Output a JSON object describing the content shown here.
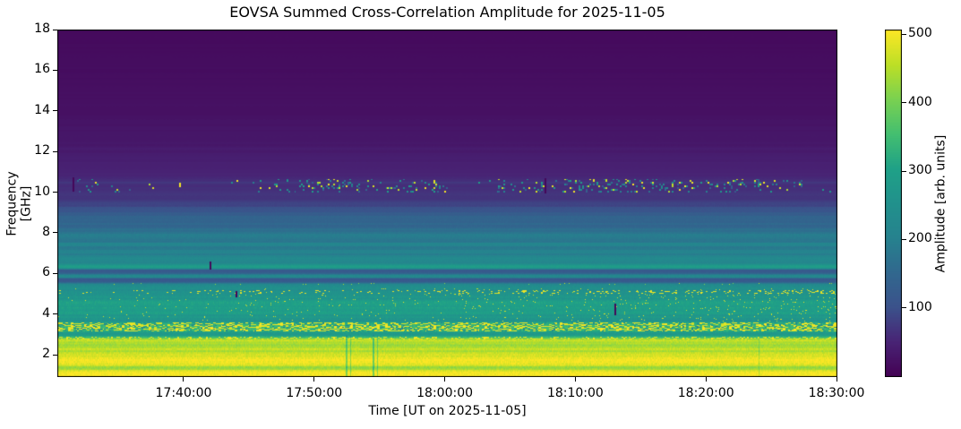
{
  "chart_data": {
    "type": "heatmap",
    "title": "EOVSA Summed Cross-Correlation Amplitude for 2025-11-05",
    "xlabel": "Time [UT on 2025-11-05]",
    "ylabel": "Frequency [GHz]",
    "x_start": "17:30:20",
    "x_end": "18:30:04",
    "x_ticks": [
      "17:40:00",
      "17:50:00",
      "18:00:00",
      "18:10:00",
      "18:20:00",
      "18:30:00"
    ],
    "y_ticks": [
      2,
      4,
      6,
      8,
      10,
      12,
      14,
      16,
      18
    ],
    "ylim": [
      0.95,
      18
    ],
    "grid": false,
    "colorbar": {
      "label": "Amplitude [arb. units]",
      "ticks": [
        100,
        200,
        300,
        400,
        500
      ],
      "vmin": 0,
      "vmax": 507,
      "colormap": "viridis"
    },
    "colormap_stops": [
      [
        0.0,
        "#440154"
      ],
      [
        0.1,
        "#482475"
      ],
      [
        0.2,
        "#3b528b"
      ],
      [
        0.3,
        "#31688e"
      ],
      [
        0.4,
        "#26828e"
      ],
      [
        0.5,
        "#21918c"
      ],
      [
        0.6,
        "#1fa187"
      ],
      [
        0.7,
        "#44bf70"
      ],
      [
        0.8,
        "#7ad151"
      ],
      [
        0.9,
        "#bddf26"
      ],
      [
        1.0,
        "#fde725"
      ]
    ],
    "freq_profile": [
      [
        18,
        13
      ],
      [
        16,
        18
      ],
      [
        14,
        24
      ],
      [
        13,
        30
      ],
      [
        12,
        38
      ],
      [
        11.5,
        44
      ],
      [
        11,
        50
      ],
      [
        10.7,
        55
      ],
      [
        10.5,
        70
      ],
      [
        10.35,
        63
      ],
      [
        10.15,
        59
      ],
      [
        10,
        63
      ],
      [
        9.7,
        73
      ],
      [
        9.4,
        88
      ],
      [
        9.2,
        103
      ],
      [
        9,
        123
      ],
      [
        8.8,
        140
      ],
      [
        8.55,
        150
      ],
      [
        8.3,
        160
      ],
      [
        8.1,
        174
      ],
      [
        7.9,
        184
      ],
      [
        7.6,
        189
      ],
      [
        7.45,
        210
      ],
      [
        7.2,
        194
      ],
      [
        6.95,
        204
      ],
      [
        6.75,
        224
      ],
      [
        6.55,
        214
      ],
      [
        6.4,
        282
      ],
      [
        6.28,
        268
      ],
      [
        6.18,
        115
      ],
      [
        6.05,
        122
      ],
      [
        5.95,
        208
      ],
      [
        5.85,
        224
      ],
      [
        5.75,
        113
      ],
      [
        5.62,
        125
      ],
      [
        5.52,
        214
      ],
      [
        5.38,
        232
      ],
      [
        5.25,
        244
      ],
      [
        5.12,
        254
      ],
      [
        5,
        250
      ],
      [
        4.9,
        274
      ],
      [
        4.78,
        260
      ],
      [
        4.62,
        298
      ],
      [
        4.5,
        308
      ],
      [
        4.38,
        294
      ],
      [
        4.22,
        275
      ],
      [
        4.08,
        290
      ],
      [
        3.95,
        270
      ],
      [
        3.82,
        262
      ],
      [
        3.68,
        268
      ],
      [
        3.6,
        318
      ],
      [
        3.45,
        338
      ],
      [
        3.3,
        344
      ],
      [
        3.18,
        308
      ],
      [
        3.08,
        264
      ],
      [
        2.98,
        292
      ],
      [
        2.88,
        338
      ],
      [
        2.8,
        418
      ],
      [
        2.7,
        462
      ],
      [
        2.6,
        448
      ],
      [
        2.5,
        424
      ],
      [
        2.42,
        444
      ],
      [
        2.3,
        468
      ],
      [
        2.2,
        440
      ],
      [
        2.1,
        455
      ],
      [
        2,
        474
      ],
      [
        1.9,
        488
      ],
      [
        1.75,
        496
      ],
      [
        1.6,
        500
      ],
      [
        1.5,
        468
      ],
      [
        1.42,
        440
      ],
      [
        1.33,
        432
      ],
      [
        1.25,
        468
      ],
      [
        1.1,
        497
      ],
      [
        0.95,
        502
      ]
    ],
    "row_noise": [
      [
        12,
        0.09
      ],
      [
        9.5,
        0.06
      ],
      [
        8,
        0.07
      ],
      [
        6.3,
        0.08
      ],
      [
        5.3,
        0.06
      ],
      [
        3.65,
        0.05
      ],
      [
        3.0,
        0.04
      ],
      [
        0,
        0.035
      ]
    ],
    "col_noise": [
      [
        9.5,
        0.012
      ],
      [
        6.0,
        0.03
      ],
      [
        3.65,
        0.045
      ],
      [
        3.0,
        0.05
      ],
      [
        0,
        0.035
      ]
    ],
    "noisy_bands": [
      {
        "f0": 3.16,
        "f1": 3.62,
        "p": 0.45,
        "lo": 468,
        "hi": 508,
        "dash": 3,
        "ramp": false
      },
      {
        "f0": 3.16,
        "f1": 3.62,
        "p": 0.12,
        "lo": 200,
        "hi": 260,
        "dash": 2,
        "ramp": false
      },
      {
        "f0": 2.79,
        "f1": 2.93,
        "p": 0.3,
        "lo": 478,
        "hi": 505,
        "dash": 2,
        "ramp": false
      },
      {
        "f0": 5.04,
        "f1": 5.18,
        "p": 0.1,
        "lo": 478,
        "hi": 505,
        "dash": 2,
        "ramp": true
      },
      {
        "f0": 3.65,
        "f1": 5.3,
        "p": 0.018,
        "lo": 458,
        "hi": 500,
        "dash": 1,
        "ramp": true
      },
      {
        "f0": 5.45,
        "f1": 5.55,
        "p": 0.02,
        "lo": 400,
        "hi": 470,
        "dash": 1,
        "ramp": true
      }
    ],
    "rfi_band": {
      "f0": 10.02,
      "f1": 10.68,
      "windows": [
        [
          "17:30:40",
          "17:33:30",
          0.05
        ],
        [
          "17:33:30",
          "17:45:30",
          0.012
        ],
        [
          "17:45:30",
          "17:48:30",
          0.1
        ],
        [
          "17:48:30",
          "17:52:00",
          0.17
        ],
        [
          "17:52:00",
          "17:55:30",
          0.1
        ],
        [
          "17:55:30",
          "17:59:30",
          0.14
        ],
        [
          "17:59:30",
          "18:04:00",
          0.03
        ],
        [
          "18:04:00",
          "18:09:00",
          0.16
        ],
        [
          "18:09:00",
          "18:14:00",
          0.19
        ],
        [
          "18:14:00",
          "18:19:00",
          0.15
        ],
        [
          "18:19:00",
          "18:24:30",
          0.17
        ],
        [
          "18:24:30",
          "18:27:30",
          0.09
        ],
        [
          "18:27:30",
          "18:30:04",
          0.02
        ]
      ]
    },
    "dropouts": [
      {
        "t": "17:31:30",
        "f0": 10.05,
        "f1": 10.75
      },
      {
        "t": "17:42:00",
        "f0": 6.25,
        "f1": 6.6
      },
      {
        "t": "17:44:00",
        "f0": 4.85,
        "f1": 5.15
      },
      {
        "t": "18:07:40",
        "f0": 10.0,
        "f1": 10.7
      },
      {
        "t": "18:13:00",
        "f0": 4.0,
        "f1": 4.5
      }
    ],
    "bright_dots": [
      {
        "t": "17:39:40",
        "f0": 10.28,
        "f1": 10.45,
        "value": 500
      }
    ],
    "dark_streaks": [
      {
        "t": "17:52:25",
        "w": 2,
        "fmax": 3.0,
        "factor": 0.82
      },
      {
        "t": "17:52:45",
        "w": 1,
        "fmax": 3.0,
        "factor": 0.85
      },
      {
        "t": "17:54:30",
        "w": 2,
        "fmax": 3.0,
        "factor": 0.8
      },
      {
        "t": "17:54:50",
        "w": 1,
        "fmax": 3.0,
        "factor": 0.85
      },
      {
        "t": "18:24:00",
        "w": 1,
        "fmax": 3.0,
        "factor": 0.9
      }
    ]
  }
}
